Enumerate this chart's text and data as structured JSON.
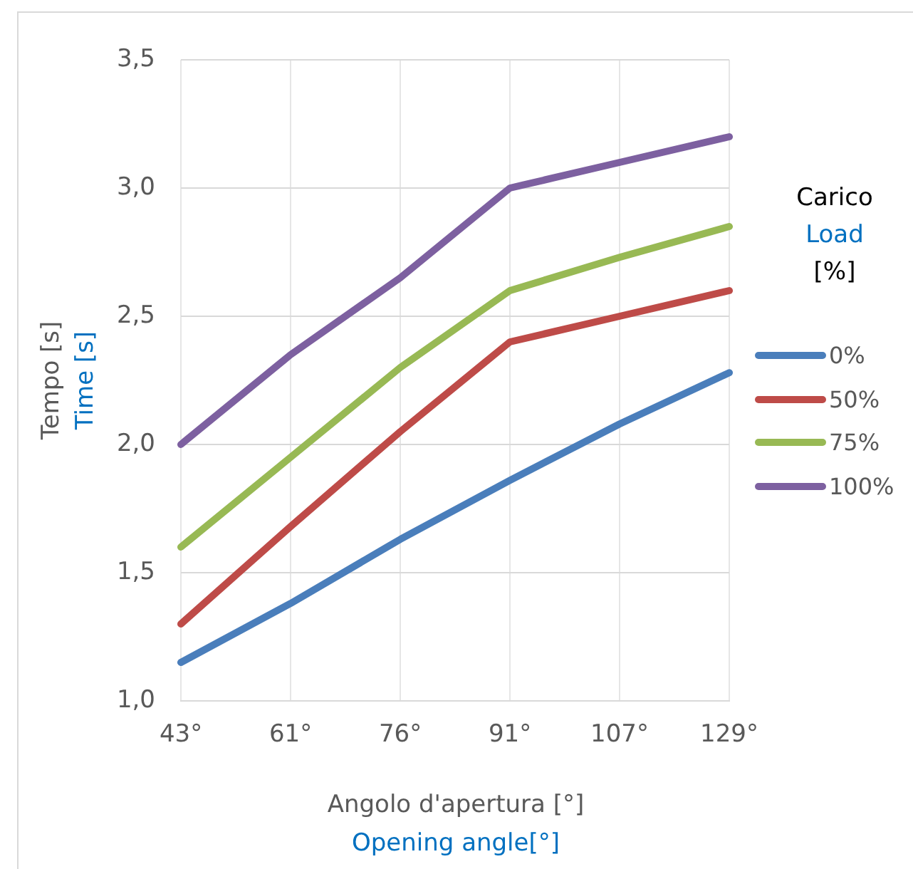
{
  "chart_data": {
    "type": "line",
    "xlabel": "Angolo d'apertura [°]\nOpening angle[°]",
    "ylabel": "Tempo [s]\nTime [s]",
    "legend_title": "Carico\nLoad\n[%]",
    "categories": [
      "43°",
      "61°",
      "76°",
      "91°",
      "107°",
      "129°"
    ],
    "series": [
      {
        "name": "0%",
        "color": "#4a7ebb",
        "values": [
          1.15,
          1.38,
          1.63,
          1.86,
          2.08,
          2.28
        ]
      },
      {
        "name": "50%",
        "color": "#be4b48",
        "values": [
          1.3,
          1.68,
          2.05,
          2.4,
          2.5,
          2.6
        ]
      },
      {
        "name": "75%",
        "color": "#98b954",
        "values": [
          1.6,
          1.95,
          2.3,
          2.6,
          2.73,
          2.85
        ]
      },
      {
        "name": "100%",
        "color": "#7d60a0",
        "values": [
          2.0,
          2.35,
          2.65,
          3.0,
          3.1,
          3.2
        ]
      }
    ],
    "ylim": [
      1.0,
      3.5
    ],
    "yticks": [
      {
        "value": 1.0,
        "label": "1,0"
      },
      {
        "value": 1.5,
        "label": "1,5"
      },
      {
        "value": 2.0,
        "label": "2,0"
      },
      {
        "value": 2.5,
        "label": "2,5"
      },
      {
        "value": 3.0,
        "label": "3,0"
      },
      {
        "value": 3.5,
        "label": "3,5"
      }
    ],
    "grid": true,
    "legend": "right",
    "marker": "none",
    "line_style": "solid"
  }
}
